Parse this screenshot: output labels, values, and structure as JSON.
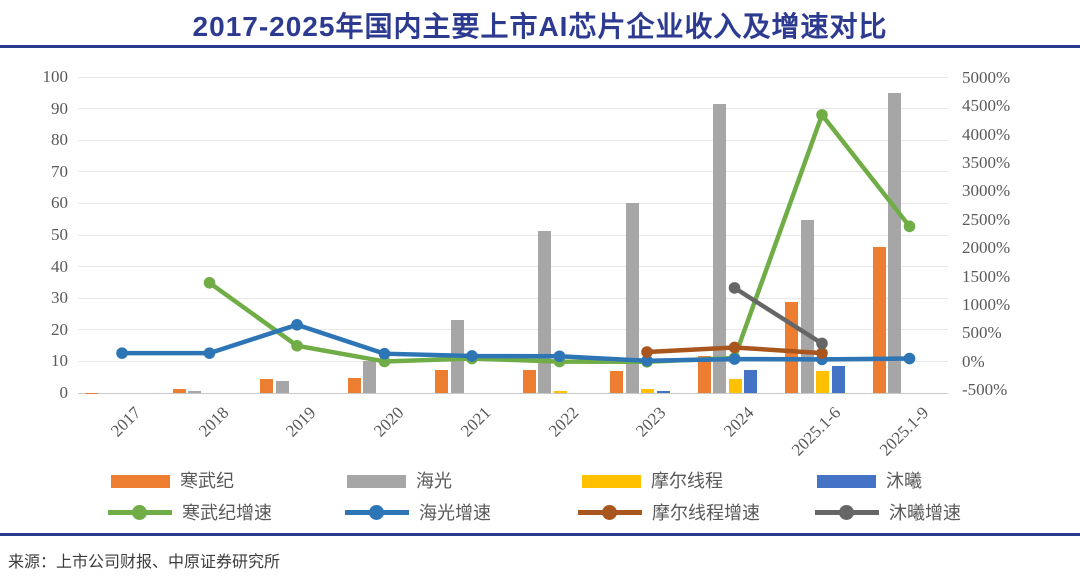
{
  "header": {
    "title": "2017-2025年国内主要上市AI芯片企业收入及增速对比"
  },
  "footer": {
    "source": "来源：上市公司财报、中原证券研究所"
  },
  "colors": {
    "title_navy": "#2C3A90",
    "axis_text": "#595959",
    "grid_line": "#E8E8E8",
    "baseline": "#C9C9C9",
    "cambricon_orange": "#ED7D31",
    "hygon_gray": "#A6A6A6",
    "moore_yellow": "#FFC000",
    "muxi_blue": "#4472C4",
    "cambricon_growth_green": "#70AD47",
    "hygon_growth_blue": "#2E75B6",
    "moore_growth_brown": "#A9551E",
    "muxi_growth_gray": "#666666",
    "source_text": "#3D3D3D"
  },
  "chart_data": {
    "type": "combo: grouped bars (revenue, left axis) + lines (YoY growth %, right axis)",
    "title": "2017-2025年国内主要上市AI芯片企业收入及增速对比",
    "categories": [
      "2017",
      "2018",
      "2019",
      "2020",
      "2021",
      "2022",
      "2023",
      "2024",
      "2025.1-6",
      "2025.1-9"
    ],
    "bar_series": [
      {
        "name": "寒武纪",
        "color": "cambricon_orange",
        "values": [
          0.1,
          1.2,
          4.4,
          4.6,
          7.2,
          7.3,
          7.1,
          11.7,
          28.8,
          46.1
        ]
      },
      {
        "name": "海光",
        "color": "hygon_gray",
        "values": [
          null,
          0.5,
          3.8,
          10.2,
          23.1,
          51.3,
          60.1,
          91.6,
          54.6,
          94.9
        ]
      },
      {
        "name": "摩尔线程",
        "color": "moore_yellow",
        "values": [
          null,
          null,
          null,
          null,
          null,
          0.5,
          1.2,
          4.4,
          7.0,
          null
        ]
      },
      {
        "name": "沐曦",
        "color": "muxi_blue",
        "values": [
          null,
          null,
          null,
          null,
          null,
          null,
          0.5,
          7.4,
          8.5,
          null
        ]
      }
    ],
    "line_series": [
      {
        "name": "寒武纪增速",
        "color": "cambricon_growth_green",
        "values": [
          null,
          1390,
          280,
          3,
          55,
          1,
          -3,
          65,
          4350,
          2385
        ]
      },
      {
        "name": "海光增速",
        "color": "hygon_growth_blue",
        "values": [
          150,
          150,
          650,
          140,
          100,
          95,
          15,
          45,
          40,
          55
        ]
      },
      {
        "name": "摩尔线程增速",
        "color": "moore_growth_brown",
        "values": [
          null,
          null,
          null,
          null,
          null,
          null,
          170,
          250,
          150,
          null
        ]
      },
      {
        "name": "沐曦增速",
        "color": "muxi_growth_gray",
        "values": [
          null,
          null,
          null,
          null,
          null,
          null,
          null,
          1300,
          320,
          null
        ]
      }
    ],
    "left_axis": {
      "min": 0,
      "max": 100,
      "step": 10,
      "ticks": [
        "100",
        "90",
        "80",
        "70",
        "60",
        "50",
        "40",
        "30",
        "20",
        "10",
        "0"
      ]
    },
    "right_axis": {
      "min": -500,
      "max": 5000,
      "step": 500,
      "ticks": [
        "5000%",
        "4500%",
        "4000%",
        "3500%",
        "3000%",
        "2500%",
        "2000%",
        "1500%",
        "1000%",
        "500%",
        "0%",
        "-500%"
      ]
    },
    "grid": true,
    "legend_position": "bottom, two rows",
    "legend": {
      "row1": [
        "寒武纪",
        "海光",
        "摩尔线程",
        "沐曦"
      ],
      "row2": [
        "寒武纪增速",
        "海光增速",
        "摩尔线程增速",
        "沐曦增速"
      ]
    }
  }
}
